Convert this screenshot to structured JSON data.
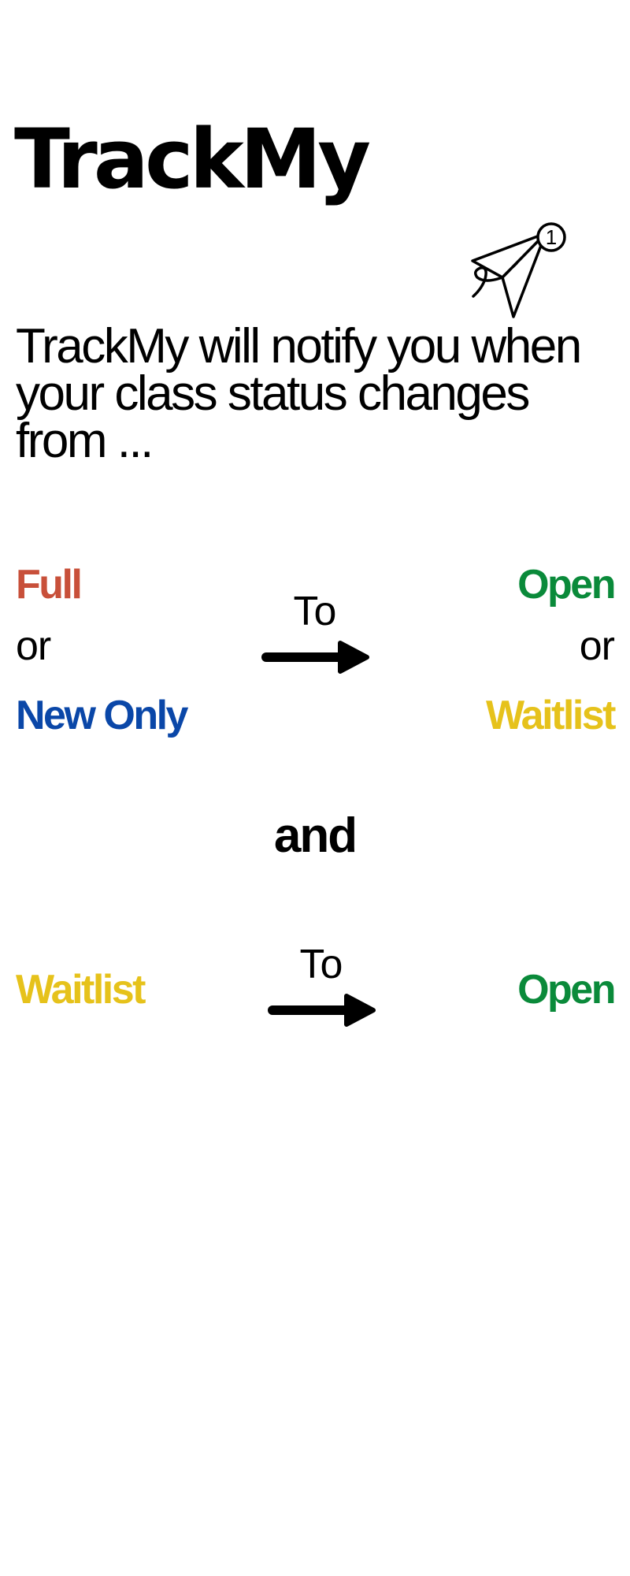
{
  "header": {
    "title": "TrackMy",
    "icon": "paper-plane-notification-icon",
    "badge_count": "1"
  },
  "intro": {
    "text": "TrackMy will notify you when your class status changes from ..."
  },
  "transition1": {
    "from_primary": "Full",
    "or_left": "or",
    "from_secondary": "New Only",
    "to_label": "To",
    "to_primary": "Open",
    "or_right": "or",
    "to_secondary": "Waitlist"
  },
  "connector": {
    "text": "and"
  },
  "transition2": {
    "from": "Waitlist",
    "to_label": "To",
    "to": "Open"
  },
  "colors": {
    "full": "#c8503a",
    "new_only": "#0a47a8",
    "open": "#0a8a3a",
    "waitlist": "#e6c21b"
  }
}
